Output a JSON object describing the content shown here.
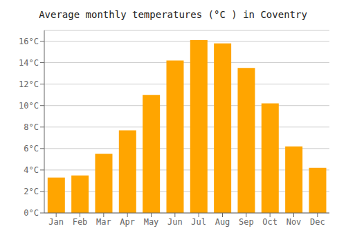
{
  "chart_data": {
    "type": "bar",
    "title": "Average monthly temperatures (°C ) in Coventry",
    "categories": [
      "Jan",
      "Feb",
      "Mar",
      "Apr",
      "May",
      "Jun",
      "Jul",
      "Aug",
      "Sep",
      "Oct",
      "Nov",
      "Dec"
    ],
    "values": [
      3.3,
      3.5,
      5.5,
      7.7,
      11.0,
      14.2,
      16.1,
      15.8,
      13.5,
      10.2,
      6.2,
      4.2
    ],
    "color": "#FFA500",
    "ylim": [
      0,
      17
    ],
    "yticks": [
      {
        "value": 0,
        "label": "0°C"
      },
      {
        "value": 2,
        "label": "2°C"
      },
      {
        "value": 4,
        "label": "4°C"
      },
      {
        "value": 6,
        "label": "6°C"
      },
      {
        "value": 8,
        "label": "8°C"
      },
      {
        "value": 10,
        "label": "10°C"
      },
      {
        "value": 12,
        "label": "12°C"
      },
      {
        "value": 14,
        "label": "14°C"
      },
      {
        "value": 16,
        "label": "16°C"
      }
    ],
    "grid": true
  }
}
